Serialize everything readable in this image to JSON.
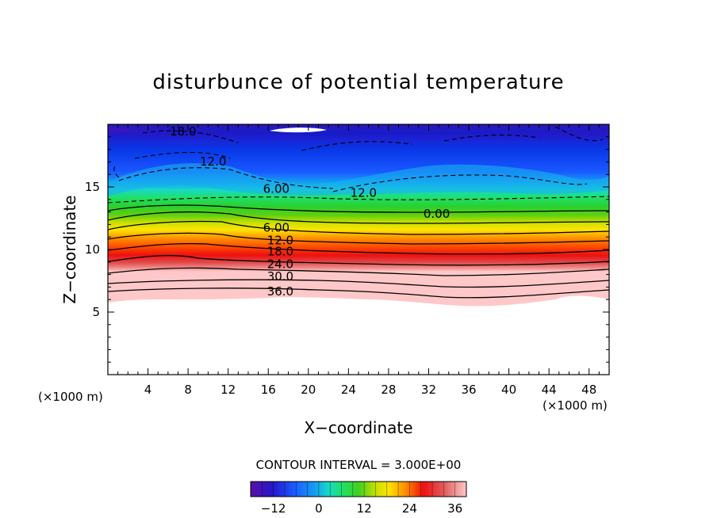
{
  "chart_data": {
    "type": "contour",
    "title": "disturbunce of potential temperature",
    "xlabel": "X−coordinate",
    "ylabel": "Z−coordinate",
    "x_unit": "(×1000 m)",
    "z_unit": "(×1000 m)",
    "xlim": [
      0,
      50
    ],
    "ylim": [
      0,
      20
    ],
    "x_ticks": [
      4,
      8,
      12,
      16,
      20,
      24,
      28,
      32,
      36,
      40,
      44,
      48
    ],
    "x_tick_labels": [
      "4",
      "8",
      "12",
      "16",
      "20",
      "24",
      "28",
      "32",
      "36",
      "40",
      "44",
      "48"
    ],
    "y_ticks": [
      5,
      10,
      15
    ],
    "y_tick_labels": [
      "5",
      "10",
      "15"
    ],
    "contour_interval_label": "CONTOUR INTERVAL = 3.000E+00",
    "colorbar": {
      "vmin": -18,
      "vmax": 39,
      "ticks": [
        -12,
        0,
        12,
        24,
        36
      ],
      "tick_labels": [
        "−12",
        "0",
        "12",
        "24",
        "36"
      ]
    },
    "contour_labels": [
      {
        "text": "18.0",
        "x": 7.5,
        "z": 19.5
      },
      {
        "text": "12.0",
        "x": 10.5,
        "z": 17.1
      },
      {
        "text": "6.00",
        "x": 16.8,
        "z": 14.9
      },
      {
        "text": "12.0",
        "x": 25.5,
        "z": 14.6
      },
      {
        "text": "0.00",
        "x": 32.8,
        "z": 12.9
      },
      {
        "text": "6.00",
        "x": 16.8,
        "z": 11.8
      },
      {
        "text": "12.0",
        "x": 17.2,
        "z": 10.8
      },
      {
        "text": "18.0",
        "x": 17.2,
        "z": 9.9
      },
      {
        "text": "24.0",
        "x": 17.2,
        "z": 8.9
      },
      {
        "text": "30.0",
        "x": 17.2,
        "z": 7.9
      },
      {
        "text": "36.0",
        "x": 17.2,
        "z": 6.7
      }
    ],
    "field_description": [
      {
        "z_range": [
          5.8,
          6.3
        ],
        "value_range": [
          36,
          39
        ]
      },
      {
        "z_range": [
          6.3,
          8.5
        ],
        "value_range": [
          24,
          36
        ]
      },
      {
        "z_range": [
          8.5,
          11.5
        ],
        "value_range": [
          6,
          24
        ]
      },
      {
        "z_range": [
          11.5,
          13.5
        ],
        "value_range": [
          0,
          6
        ]
      },
      {
        "z_range": [
          13.5,
          19.8
        ],
        "value_range": [
          -18,
          0
        ]
      }
    ]
  }
}
